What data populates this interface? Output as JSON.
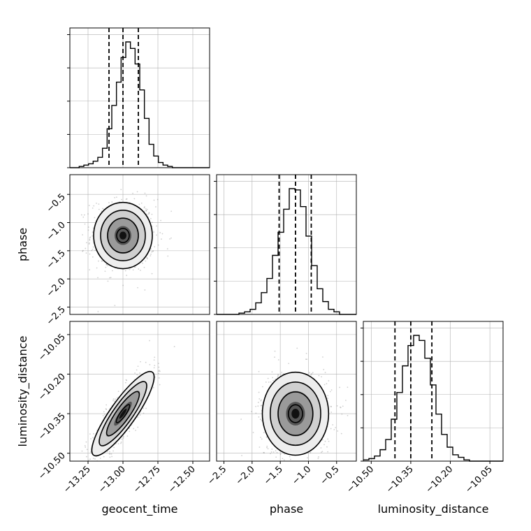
{
  "chart_data": {
    "type": "corner",
    "parameters": [
      "geocent_time",
      "phase",
      "luminosity_distance"
    ],
    "ranges": {
      "geocent_time": [
        -13.38,
        -12.38
      ],
      "phase": [
        -2.63,
        -0.15
      ],
      "luminosity_distance": [
        -10.53,
        -10.0
      ]
    },
    "ticks": {
      "geocent_time": [
        "-13.25",
        "-13.00",
        "-12.75",
        "-12.50"
      ],
      "phase": [
        "-2.5",
        "-2.0",
        "-1.5",
        "-1.0",
        "-0.5"
      ],
      "luminosity_distance": [
        "-10.50",
        "-10.35",
        "-10.20",
        "-10.05"
      ]
    },
    "quantiles": {
      "geocent_time": [
        -13.1,
        -13.0,
        -12.89
      ],
      "phase": [
        -1.52,
        -1.23,
        -0.95
      ],
      "luminosity_distance": [
        -10.41,
        -10.35,
        -10.27
      ]
    },
    "histograms": {
      "geocent_time": {
        "edges": [
          -13.38,
          -12.38
        ],
        "counts": [
          0,
          0,
          1,
          2,
          3,
          5,
          8,
          15,
          30,
          48,
          66,
          85,
          97,
          92,
          80,
          60,
          38,
          18,
          9,
          4,
          2,
          1,
          0,
          0,
          0,
          0,
          0,
          0,
          0,
          0
        ]
      },
      "phase": {
        "edges": [
          -2.63,
          -0.15
        ],
        "counts": [
          0,
          0,
          0,
          0,
          1,
          2,
          4,
          9,
          17,
          28,
          46,
          64,
          82,
          98,
          97,
          84,
          61,
          38,
          20,
          10,
          4,
          2,
          0,
          0,
          0
        ]
      },
      "luminosity_distance": {
        "edges": [
          -10.53,
          -10.0
        ],
        "counts": [
          1,
          2,
          4,
          9,
          17,
          33,
          54,
          75,
          91,
          99,
          95,
          81,
          60,
          37,
          21,
          11,
          5,
          3,
          1,
          0,
          0,
          0,
          0,
          0,
          0
        ]
      }
    },
    "posterior": {
      "means": {
        "geocent_time": -13.0,
        "phase": -1.23,
        "luminosity_distance": -10.35
      },
      "sigmas": {
        "geocent_time": 0.1,
        "phase": 0.28,
        "luminosity_distance": 0.075
      },
      "correlations": {
        "geocent_time|phase": 0.0,
        "geocent_time|luminosity_distance": 0.85,
        "phase|luminosity_distance": 0.0
      }
    },
    "grid": true,
    "line_color": "#000000",
    "quantile_style": "dashed"
  }
}
